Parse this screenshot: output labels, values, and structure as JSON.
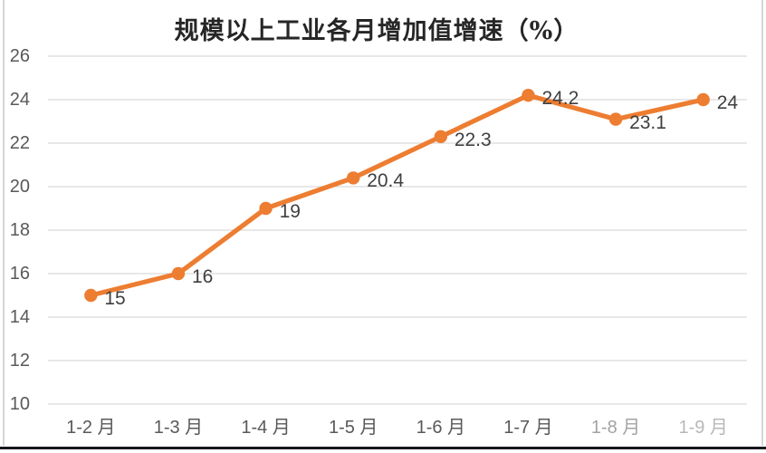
{
  "chart_data": {
    "type": "line",
    "title": "规模以上工业各月增加值增速（%）",
    "categories": [
      "1-2 月",
      "1-3 月",
      "1-4 月",
      "1-5 月",
      "1-6 月",
      "1-7 月",
      "1-8 月",
      "1-9 月"
    ],
    "values": [
      15,
      16,
      19,
      20.4,
      22.3,
      24.2,
      23.1,
      24
    ],
    "data_labels": [
      "15",
      "16",
      "19",
      "20.4",
      "22.3",
      "24.2",
      "23.1",
      "24"
    ],
    "yticks": [
      26,
      24,
      22,
      20,
      18,
      16,
      14,
      12,
      10
    ],
    "ylim": [
      10,
      26
    ],
    "xlabel": "",
    "ylabel": "",
    "grid": true,
    "legend": "none",
    "colors": {
      "line": "#ED7D31",
      "marker": "#ED7D31",
      "gridline": "#D9D9D9",
      "axis_text": "#595959",
      "data_label_text": "#3F3F3F",
      "title_text": "#262626"
    }
  }
}
